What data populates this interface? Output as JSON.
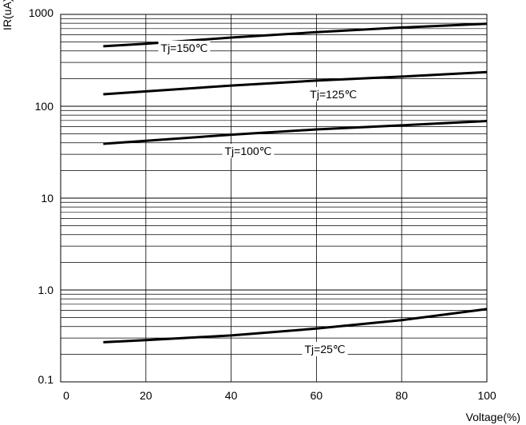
{
  "chart_data": {
    "type": "line",
    "title": "",
    "xlabel": "Voltage(%)",
    "ylabel": "IR(uA)",
    "x_scale": "linear",
    "y_scale": "log",
    "xlim": [
      0,
      100
    ],
    "ylim": [
      0.1,
      1000
    ],
    "grid": true,
    "x_ticks": [
      "0",
      "20",
      "40",
      "60",
      "80",
      "100"
    ],
    "y_ticks": [
      "0.1",
      "1.0",
      "10",
      "100",
      "1000"
    ],
    "series": [
      {
        "name": "Tj=150℃",
        "x": [
          10,
          20,
          40,
          60,
          80,
          100
        ],
        "y": [
          450,
          480,
          560,
          640,
          720,
          790
        ]
      },
      {
        "name": "Tj=125℃",
        "x": [
          10,
          20,
          40,
          60,
          80,
          100
        ],
        "y": [
          135,
          145,
          168,
          190,
          210,
          235
        ]
      },
      {
        "name": "Tj=100℃",
        "x": [
          10,
          20,
          40,
          60,
          80,
          100
        ],
        "y": [
          39,
          42,
          49,
          56,
          62,
          69
        ]
      },
      {
        "name": "Tj=25℃",
        "x": [
          10,
          20,
          40,
          60,
          80,
          100
        ],
        "y": [
          0.27,
          0.285,
          0.32,
          0.38,
          0.47,
          0.62
        ]
      }
    ]
  }
}
